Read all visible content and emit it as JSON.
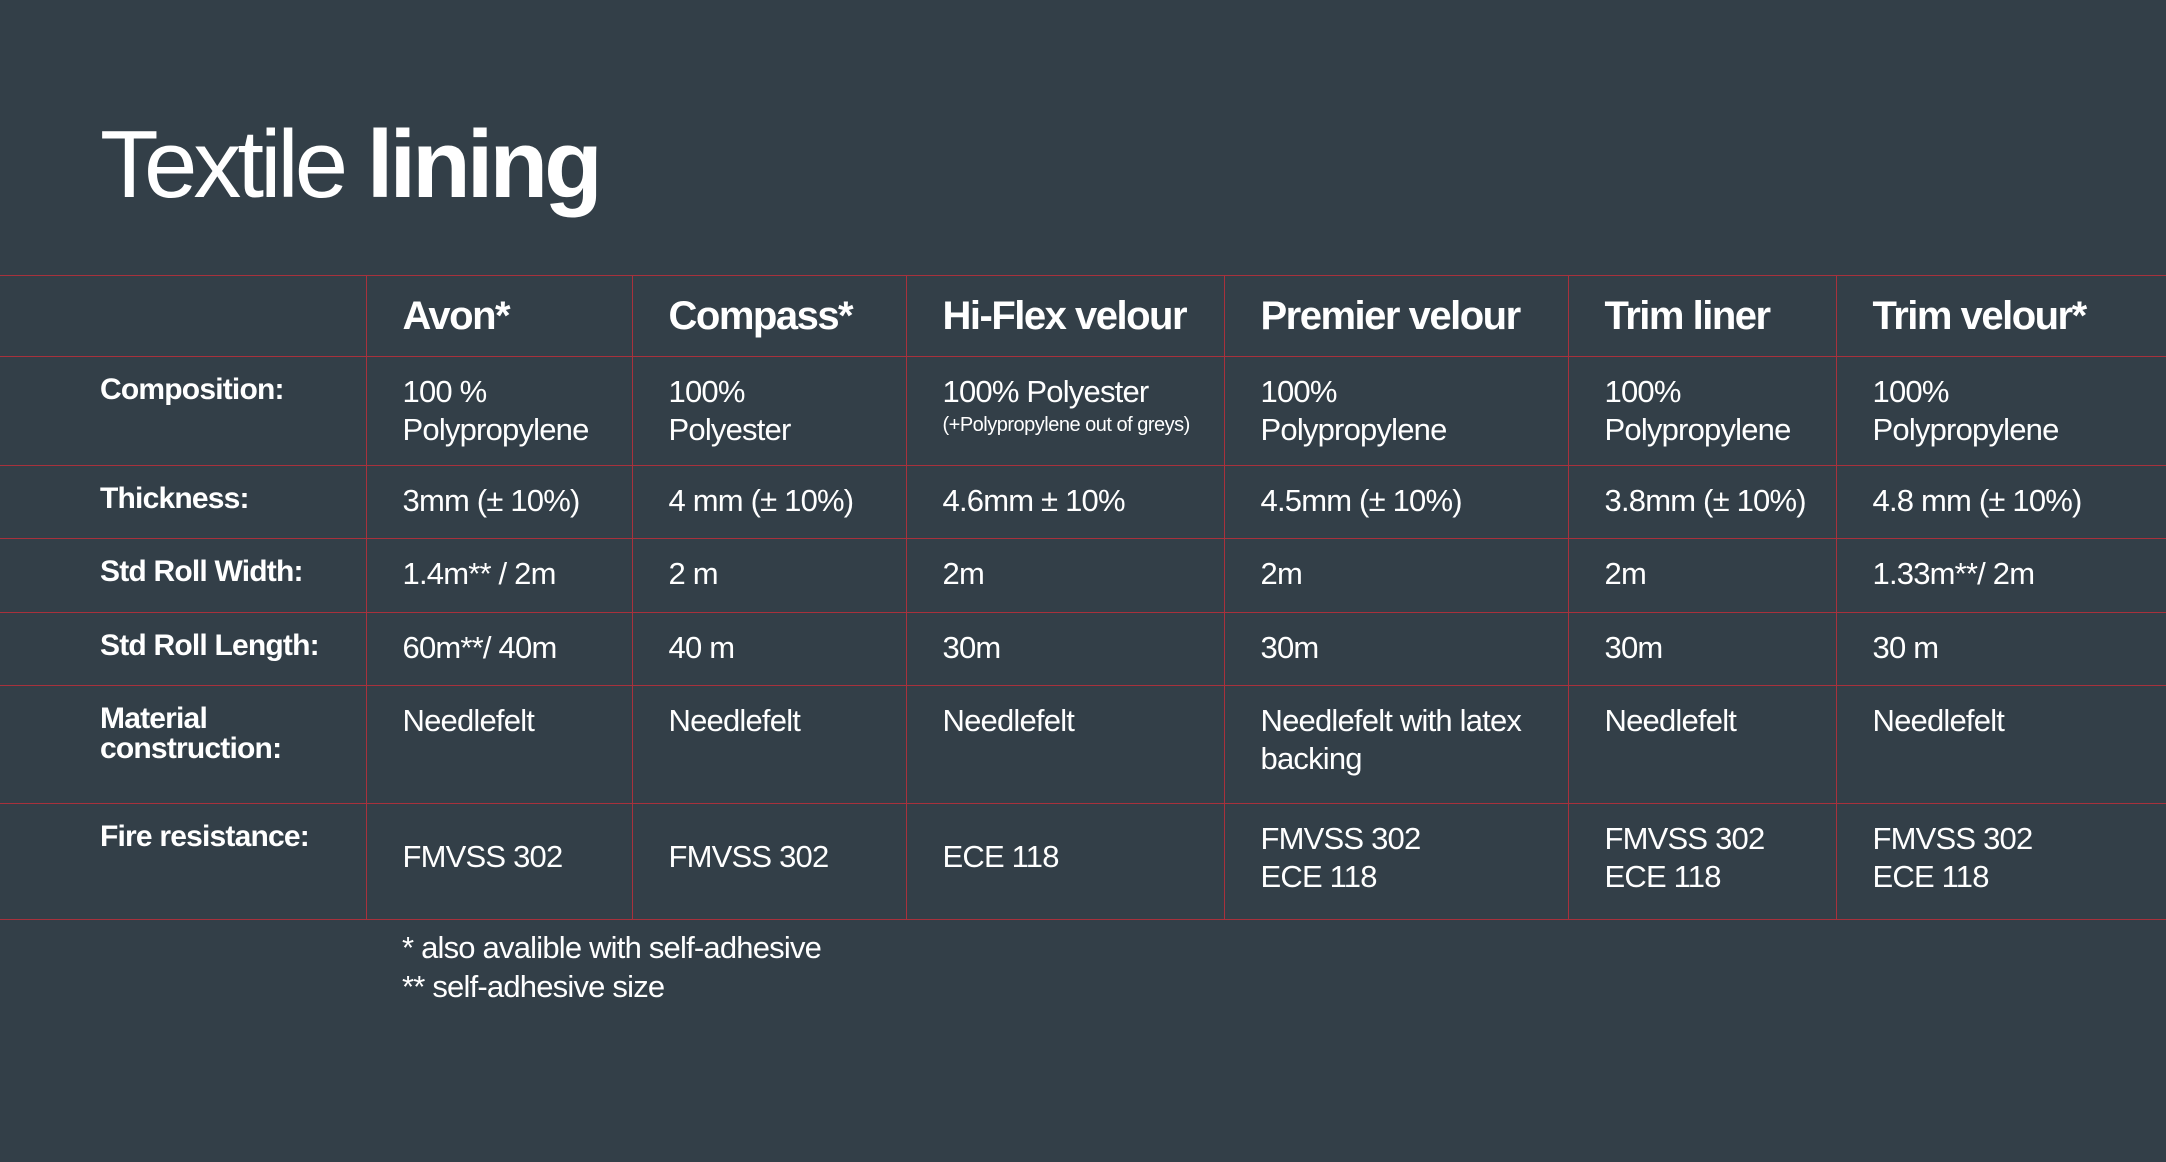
{
  "title": {
    "light": "Textile",
    "bold": "lining"
  },
  "products": [
    "Avon*",
    "Compass*",
    "Hi-Flex velour",
    "Premier velour",
    "Trim liner",
    "Trim velour*"
  ],
  "rows": {
    "composition": {
      "label": "Composition:",
      "values": [
        [
          "100 %",
          "Polypropylene"
        ],
        [
          "100%",
          "Polyester"
        ],
        [
          "100% Polyester",
          "(+Polypropylene out of greys)"
        ],
        [
          "100%",
          "Polypropylene"
        ],
        [
          "100%",
          "Polypropylene"
        ],
        [
          "100%",
          "Polypropylene"
        ]
      ]
    },
    "thickness": {
      "label": "Thickness:",
      "values": [
        "3mm (± 10%)",
        "4 mm (± 10%)",
        "4.6mm ± 10%",
        "4.5mm (± 10%)",
        "3.8mm (± 10%)",
        "4.8 mm (± 10%)"
      ]
    },
    "roll_width": {
      "label": "Std Roll Width:",
      "values": [
        "1.4m** / 2m",
        "2 m",
        "2m",
        "2m",
        "2m",
        "1.33m**/ 2m"
      ]
    },
    "roll_length": {
      "label": "Std Roll Length:",
      "values": [
        "60m**/ 40m",
        "40 m",
        "30m",
        "30m",
        "30m",
        "30 m"
      ]
    },
    "material": {
      "label": [
        "Material",
        "construction:"
      ],
      "values": [
        "Needlefelt",
        "Needlefelt",
        "Needlefelt",
        "Needlefelt with latex backing",
        "Needlefelt",
        "Needlefelt"
      ]
    },
    "fire": {
      "label": "Fire resistance:",
      "values": [
        [
          "FMVSS 302"
        ],
        [
          "FMVSS 302"
        ],
        [
          "ECE 118"
        ],
        [
          "FMVSS 302",
          "ECE 118"
        ],
        [
          "FMVSS 302",
          "ECE 118"
        ],
        [
          "FMVSS 302",
          "ECE 118"
        ]
      ]
    }
  },
  "footnotes": [
    "* also avalible with self-adhesive",
    "** self-adhesive size"
  ],
  "colors": {
    "background": "#333f48",
    "grid_lines": "#a8313c",
    "text": "#ffffff"
  }
}
